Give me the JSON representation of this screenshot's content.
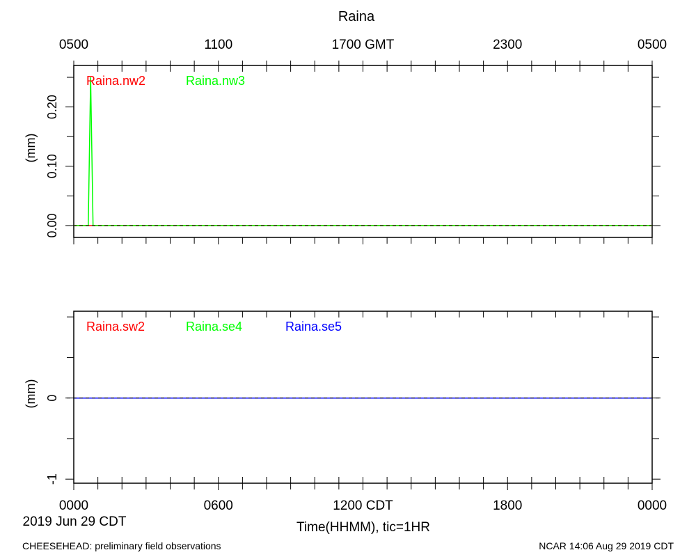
{
  "title": "Raina",
  "top_axis_ticks": [
    "0500",
    "1100",
    "1700 GMT",
    "2300",
    "0500"
  ],
  "bottom_axis_ticks": [
    "0000",
    "0600",
    "1200 CDT",
    "1800",
    "0000"
  ],
  "date_label": "2019 Jun 29 CDT",
  "xlabel": "Time(HHMM), tic=1HR",
  "footer_left": "CHEESEHEAD: preliminary field observations",
  "footer_right": "NCAR 14:06 Aug 29 2019 CDT",
  "colors": {
    "red": "#ff0000",
    "green": "#00ff00",
    "blue": "#0000ff",
    "zero_line": "#000000"
  },
  "chart_data": [
    {
      "type": "line",
      "ylabel": "(mm)",
      "x_unit": "hours CDT",
      "xlim": [
        0,
        24
      ],
      "ylim": [
        -0.02,
        0.27
      ],
      "yticks": [
        0.0,
        0.1,
        0.2
      ],
      "ytick_labels": [
        "0.00",
        "0.10",
        "0.20"
      ],
      "series": [
        {
          "name": "Raina.nw2",
          "color": "#ff0000",
          "x": [
            0,
            24
          ],
          "y": [
            0,
            0
          ]
        },
        {
          "name": "Raina.nw3",
          "color": "#00ff00",
          "x": [
            0,
            0.6,
            0.7,
            0.8,
            24
          ],
          "y": [
            0,
            0,
            0.25,
            0,
            0
          ]
        }
      ]
    },
    {
      "type": "line",
      "ylabel": "(mm)",
      "x_unit": "hours CDT",
      "xlim": [
        0,
        24
      ],
      "ylim": [
        -1.05,
        1.07
      ],
      "yticks": [
        0,
        -1
      ],
      "ytick_labels": [
        "0",
        "-1"
      ],
      "series": [
        {
          "name": "Raina.sw2",
          "color": "#ff0000",
          "x": [
            0,
            24
          ],
          "y": [
            0,
            0
          ]
        },
        {
          "name": "Raina.se4",
          "color": "#00ff00",
          "x": [
            0,
            24
          ],
          "y": [
            0,
            0
          ]
        },
        {
          "name": "Raina.se5",
          "color": "#0000ff",
          "x": [
            0,
            24
          ],
          "y": [
            0,
            0
          ]
        }
      ]
    }
  ]
}
